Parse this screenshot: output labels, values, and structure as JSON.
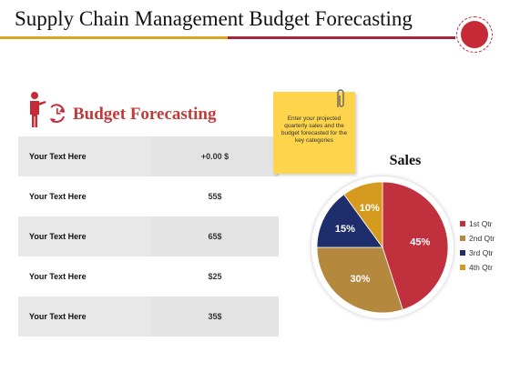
{
  "slide": {
    "title": "Supply Chain Management Budget Forecasting"
  },
  "colors": {
    "accent_red": "#c62a36",
    "accent_gold": "#d9a520",
    "heading_red": "#c23b3b",
    "note_yellow": "#fdd44b"
  },
  "icons": {
    "presenter": "presenter-with-cycle-icon",
    "clip": "paperclip-icon",
    "badge": "circle-badge-icon"
  },
  "budget": {
    "heading": "Budget Forecasting",
    "rows": [
      {
        "label": "Your Text Here",
        "value": "+0.00 $"
      },
      {
        "label": "Your Text Here",
        "value": "55$"
      },
      {
        "label": "Your Text Here",
        "value": "65$"
      },
      {
        "label": "Your Text Here",
        "value": "$25"
      },
      {
        "label": "Your Text Here",
        "value": "35$"
      }
    ]
  },
  "note": {
    "text": "Enter your projected quarterly sales and the budget forecasted for the key categories"
  },
  "chart_data": {
    "type": "pie",
    "title": "Sales",
    "categories": [
      "1st Qtr",
      "2nd Qtr",
      "3rd Qtr",
      "4th Qtr"
    ],
    "values": [
      45,
      30,
      15,
      10
    ],
    "value_labels": [
      "45%",
      "30%",
      "15%",
      "10%"
    ],
    "colors": [
      "#c0313d",
      "#b5893d",
      "#1e2d6b",
      "#d69a1e"
    ],
    "start": "12 o'clock, clockwise",
    "legend_position": "right"
  }
}
